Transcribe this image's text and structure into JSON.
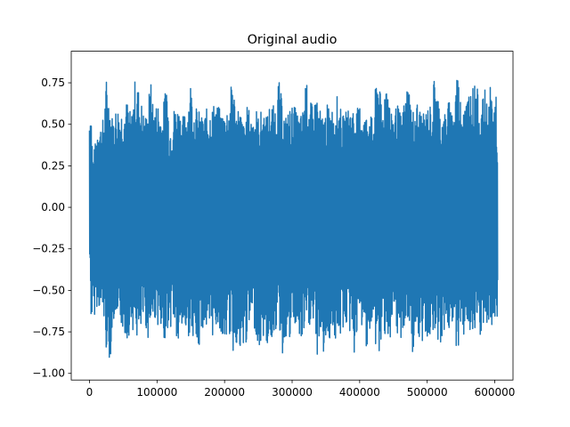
{
  "chart_data": {
    "type": "line",
    "title": "Original audio",
    "xlabel": "",
    "ylabel": "",
    "xlim": [
      -27000,
      627000
    ],
    "ylim": [
      -1.04,
      0.94
    ],
    "grid": false,
    "legend": "none",
    "line_color": "#1f77b4",
    "n_samples": 604000,
    "x_ticks": [
      0,
      100000,
      200000,
      300000,
      400000,
      500000,
      600000
    ],
    "x_tick_labels": [
      "0",
      "100000",
      "200000",
      "300000",
      "400000",
      "500000",
      "600000"
    ],
    "y_ticks": [
      -1.0,
      -0.75,
      -0.5,
      -0.25,
      0.0,
      0.25,
      0.5,
      0.75
    ],
    "y_tick_labels": [
      "−1.00",
      "−0.75",
      "−0.50",
      "−0.25",
      "0.00",
      "0.25",
      "0.50",
      "0.75"
    ],
    "envelope": {
      "x": [
        0,
        2000,
        5000,
        9000,
        13000,
        17000,
        21000,
        25000,
        30000,
        34000,
        38000,
        42000,
        46000,
        50000,
        56000,
        62000,
        68000,
        74000,
        78000,
        82000,
        86000,
        90000,
        96000,
        102000,
        108000,
        114000,
        118000,
        122000,
        126000,
        132000,
        138000,
        144000,
        150000,
        154000,
        160000,
        166000,
        172000,
        176000,
        180000,
        186000,
        192000,
        198000,
        204000,
        208000,
        212000,
        216000,
        222000,
        228000,
        234000,
        240000,
        246000,
        250000,
        256000,
        262000,
        268000,
        274000,
        280000,
        286000,
        290000,
        296000,
        302000,
        308000,
        312000,
        316000,
        320000,
        326000,
        332000,
        336000,
        340000,
        346000,
        352000,
        358000,
        362000,
        366000,
        370000,
        376000,
        382000,
        388000,
        392000,
        398000,
        402000,
        408000,
        414000,
        420000,
        426000,
        430000,
        434000,
        440000,
        446000,
        450000,
        456000,
        462000,
        466000,
        472000,
        478000,
        484000,
        490000,
        496000,
        500000,
        506000,
        512000,
        518000,
        524000,
        528000,
        532000,
        536000,
        540000,
        544000,
        548000,
        552000,
        555000,
        558000,
        562000,
        566000,
        570000,
        574000,
        578000,
        582000,
        586000,
        590000,
        594000,
        598000,
        602000,
        604000
      ],
      "max": [
        0.6,
        0.68,
        0.3,
        0.4,
        0.55,
        0.5,
        0.55,
        0.78,
        0.65,
        0.55,
        0.6,
        0.62,
        0.6,
        0.62,
        0.65,
        0.55,
        0.8,
        0.7,
        0.62,
        0.55,
        0.6,
        0.78,
        0.6,
        0.65,
        0.55,
        0.82,
        0.5,
        0.55,
        0.62,
        0.62,
        0.55,
        0.6,
        0.78,
        0.62,
        0.6,
        0.55,
        0.58,
        0.62,
        0.6,
        0.65,
        0.6,
        0.58,
        0.62,
        0.65,
        0.85,
        0.6,
        0.62,
        0.5,
        0.62,
        0.55,
        0.62,
        0.55,
        0.6,
        0.55,
        0.65,
        0.6,
        0.78,
        0.62,
        0.55,
        0.6,
        0.62,
        0.58,
        0.55,
        0.6,
        0.78,
        0.65,
        0.6,
        0.72,
        0.6,
        0.55,
        0.62,
        0.6,
        0.62,
        0.68,
        0.62,
        0.55,
        0.6,
        0.62,
        0.6,
        0.6,
        0.65,
        0.55,
        0.62,
        0.5,
        0.89,
        0.7,
        0.6,
        0.88,
        0.55,
        0.6,
        0.62,
        0.55,
        0.65,
        0.78,
        0.58,
        0.65,
        0.6,
        0.55,
        0.62,
        0.62,
        0.85,
        0.62,
        0.55,
        0.6,
        0.65,
        0.6,
        0.62,
        0.88,
        0.7,
        0.62,
        0.78,
        0.65,
        0.75,
        0.72,
        0.75,
        0.72,
        0.6,
        0.65,
        0.72,
        0.6,
        0.75,
        0.6,
        0.75,
        0.32
      ],
      "min": [
        -0.35,
        -0.68,
        -0.72,
        -0.6,
        -0.6,
        -0.65,
        -0.7,
        -0.88,
        -0.93,
        -0.75,
        -0.65,
        -0.9,
        -0.7,
        -0.78,
        -0.8,
        -0.72,
        -0.78,
        -0.85,
        -0.72,
        -0.7,
        -0.8,
        -0.75,
        -0.68,
        -0.72,
        -0.9,
        -0.7,
        -0.82,
        -0.65,
        -0.75,
        -0.92,
        -0.72,
        -0.8,
        -0.75,
        -0.78,
        -0.95,
        -0.72,
        -0.75,
        -0.9,
        -0.8,
        -0.75,
        -0.72,
        -0.85,
        -0.78,
        -0.78,
        -0.9,
        -0.8,
        -0.95,
        -0.9,
        -0.78,
        -0.72,
        -0.75,
        -0.9,
        -0.78,
        -0.85,
        -0.82,
        -0.75,
        -0.72,
        -0.92,
        -0.78,
        -0.85,
        -0.72,
        -0.75,
        -0.9,
        -0.78,
        -0.8,
        -0.72,
        -0.75,
        -0.95,
        -0.78,
        -0.9,
        -0.85,
        -0.75,
        -0.78,
        -0.9,
        -0.82,
        -0.72,
        -0.75,
        -0.78,
        -0.9,
        -0.75,
        -0.72,
        -0.85,
        -0.8,
        -0.78,
        -0.9,
        -0.92,
        -0.78,
        -0.75,
        -0.88,
        -0.72,
        -0.85,
        -0.78,
        -0.75,
        -0.72,
        -0.88,
        -0.78,
        -0.92,
        -0.75,
        -0.8,
        -0.78,
        -0.72,
        -0.85,
        -0.78,
        -0.72,
        -0.75,
        -0.8,
        -0.72,
        -0.9,
        -0.78,
        -0.82,
        -0.75,
        -0.72,
        -0.75,
        -0.8,
        -0.88,
        -0.72,
        -0.8,
        -0.75,
        -0.72,
        -0.8,
        -0.75,
        -0.7,
        -0.72,
        -0.68
      ]
    }
  }
}
